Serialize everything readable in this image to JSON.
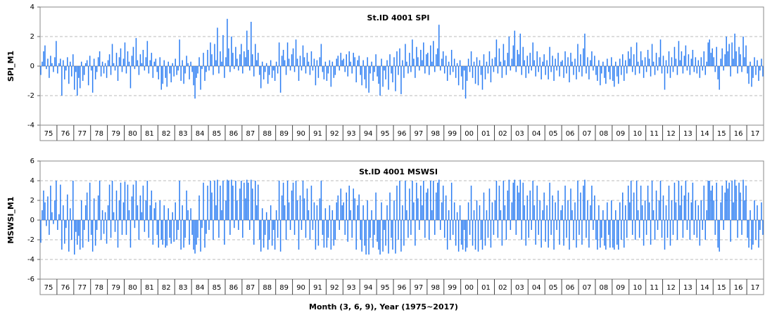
{
  "chart_data": [
    {
      "type": "bar",
      "title": "St.ID   4001   SPI",
      "ylabel": "SPI_M1",
      "color": "#2a7cf2",
      "grid": true,
      "ylim": [
        -4,
        4
      ],
      "yticks": [
        -4,
        -2,
        0,
        2,
        4
      ],
      "categories": [
        "75",
        "76",
        "77",
        "78",
        "79",
        "80",
        "81",
        "82",
        "83",
        "84",
        "85",
        "86",
        "87",
        "88",
        "89",
        "90",
        "91",
        "92",
        "93",
        "94",
        "95",
        "96",
        "97",
        "98",
        "99",
        "00",
        "01",
        "02",
        "03",
        "04",
        "05",
        "06",
        "07",
        "08",
        "09",
        "10",
        "11",
        "12",
        "13",
        "14",
        "15",
        "16",
        "17"
      ],
      "values": [
        [
          -0.6,
          0.3,
          1.0,
          1.4,
          -0.2,
          0.5,
          -0.8,
          0.7,
          0.2,
          -0.4,
          0.6,
          1.7
        ],
        [
          -0.5,
          0.2,
          0.5,
          -2.0,
          0.4,
          -0.9,
          -0.3,
          0.6,
          -1.2,
          0.3,
          -0.7,
          0.8
        ],
        [
          -1.6,
          -0.4,
          -2.0,
          -0.8,
          -1.5,
          0.3,
          -1.0,
          -0.6,
          0.2,
          0.4,
          -1.3,
          0.7
        ],
        [
          -0.3,
          -1.8,
          0.5,
          -0.9,
          -0.4,
          0.6,
          1.0,
          -0.7,
          0.3,
          -0.5,
          0.2,
          -0.8
        ],
        [
          0.4,
          0.8,
          -0.6,
          1.5,
          0.2,
          -0.3,
          0.9,
          -1.0,
          0.6,
          1.2,
          -0.4,
          0.5
        ],
        [
          1.6,
          -0.5,
          1.0,
          0.3,
          -1.5,
          0.7,
          1.3,
          -0.2,
          1.9,
          0.4,
          -0.6,
          0.8
        ],
        [
          0.2,
          1.1,
          -0.3,
          0.6,
          1.7,
          -0.5,
          0.4,
          0.9,
          -0.8,
          0.3,
          0.5,
          -0.4
        ],
        [
          -0.9,
          0.6,
          -1.6,
          -1.2,
          0.4,
          -0.8,
          -1.4,
          0.3,
          -0.5,
          -1.1,
          0.2,
          -0.7
        ],
        [
          0.5,
          -0.6,
          -0.3,
          1.8,
          -1.0,
          0.4,
          -1.2,
          -0.5,
          0.7,
          0.2,
          -0.9,
          0.3
        ],
        [
          -0.4,
          -1.3,
          -2.2,
          -0.8,
          -0.5,
          0.6,
          -1.6,
          -0.2,
          0.9,
          -1.0,
          -0.4,
          1.1
        ],
        [
          -0.3,
          1.6,
          0.8,
          -0.6,
          1.5,
          0.4,
          2.6,
          -0.5,
          1.0,
          0.3,
          2.1,
          -0.8
        ],
        [
          0.6,
          3.2,
          1.2,
          -0.4,
          2.0,
          0.9,
          -0.2,
          1.3,
          0.5,
          -0.3,
          0.8,
          1.5
        ],
        [
          -0.5,
          1.0,
          0.6,
          2.4,
          1.1,
          -0.3,
          3.0,
          0.8,
          -0.7,
          1.5,
          0.4,
          0.9
        ],
        [
          -0.6,
          -1.5,
          0.3,
          -0.9,
          -0.4,
          0.2,
          -1.2,
          -0.6,
          0.4,
          -0.8,
          -0.3,
          -1.0
        ],
        [
          0.3,
          -0.5,
          1.6,
          -1.8,
          0.7,
          1.1,
          0.4,
          -0.6,
          1.6,
          0.5,
          -0.3,
          0.8
        ],
        [
          1.2,
          -0.4,
          1.8,
          0.5,
          -1.0,
          0.7,
          -0.3,
          1.4,
          0.6,
          -0.5,
          0.9,
          0.3
        ],
        [
          -0.6,
          1.0,
          -0.3,
          0.5,
          -1.3,
          0.4,
          -0.8,
          0.6,
          1.5,
          -0.4,
          -0.9,
          0.3
        ],
        [
          -1.0,
          -0.5,
          0.4,
          -1.4,
          0.3,
          -0.8,
          -0.6,
          0.5,
          0.7,
          -0.3,
          0.9,
          0.4
        ],
        [
          0.5,
          -0.4,
          0.8,
          -0.7,
          1.0,
          0.3,
          -0.5,
          0.9,
          0.6,
          -1.1,
          0.4,
          0.7
        ],
        [
          -0.6,
          -1.3,
          0.4,
          -0.9,
          -1.5,
          0.6,
          -1.8,
          -0.5,
          0.3,
          -1.0,
          -0.4,
          0.8
        ],
        [
          -0.7,
          -1.2,
          -2.0,
          0.5,
          -1.4,
          -0.3,
          -0.9,
          0.4,
          -1.6,
          0.8,
          -0.5,
          -1.1
        ],
        [
          0.6,
          -1.7,
          1.0,
          -0.6,
          1.2,
          -1.9,
          0.4,
          -0.8,
          1.5,
          0.3,
          -0.5,
          0.9
        ],
        [
          -0.4,
          1.8,
          0.5,
          -0.8,
          1.3,
          0.6,
          -0.3,
          1.1,
          0.4,
          1.6,
          -0.5,
          0.8
        ],
        [
          0.9,
          -0.6,
          1.4,
          0.3,
          1.7,
          -0.4,
          0.8,
          1.2,
          2.8,
          -0.3,
          0.5,
          1.0
        ],
        [
          -0.5,
          0.7,
          -1.0,
          0.3,
          -0.6,
          1.1,
          -0.4,
          0.5,
          -0.8,
          0.2,
          -1.3,
          0.4
        ],
        [
          -0.7,
          -1.6,
          -0.3,
          -2.2,
          -1.0,
          0.5,
          -0.4,
          1.0,
          -0.8,
          0.3,
          -1.2,
          0.6
        ],
        [
          -1.3,
          0.4,
          -0.6,
          -1.6,
          0.8,
          -0.9,
          0.3,
          -0.5,
          1.0,
          -1.1,
          0.5,
          -0.4
        ],
        [
          0.6,
          1.8,
          -0.5,
          1.2,
          0.3,
          -0.8,
          1.5,
          0.4,
          -0.6,
          0.9,
          2.0,
          -0.3
        ],
        [
          0.5,
          1.4,
          2.4,
          -0.4,
          1.1,
          0.8,
          2.2,
          -0.6,
          1.3,
          0.4,
          -0.8,
          0.7
        ],
        [
          -0.5,
          0.9,
          -0.3,
          1.6,
          0.4,
          -0.7,
          1.0,
          -0.4,
          0.6,
          -0.9,
          0.3,
          0.8
        ],
        [
          -0.6,
          0.4,
          -0.9,
          1.3,
          -0.4,
          0.7,
          -1.0,
          0.5,
          -0.3,
          0.9,
          -0.7,
          0.3
        ],
        [
          0.4,
          -0.8,
          1.0,
          -0.5,
          0.6,
          -1.1,
          0.9,
          0.3,
          -0.6,
          0.5,
          -0.9,
          1.5
        ],
        [
          -0.4,
          0.8,
          -0.7,
          1.2,
          2.2,
          -0.5,
          0.6,
          -0.9,
          0.4,
          1.0,
          -0.3,
          0.7
        ],
        [
          -0.6,
          -1.0,
          0.4,
          -1.3,
          -0.5,
          0.3,
          -0.8,
          -1.2,
          0.5,
          -0.4,
          -0.9,
          0.6
        ],
        [
          -1.0,
          -1.4,
          0.3,
          -0.7,
          -1.2,
          0.5,
          -0.6,
          0.8,
          -1.0,
          0.4,
          -0.5,
          1.0
        ],
        [
          0.5,
          1.3,
          -0.4,
          0.8,
          -0.6,
          1.6,
          0.3,
          -0.5,
          1.0,
          0.4,
          -0.8,
          0.6
        ],
        [
          -0.4,
          1.1,
          0.5,
          -0.7,
          1.5,
          0.3,
          -0.6,
          0.9,
          -0.3,
          0.6,
          1.8,
          -0.5
        ],
        [
          0.7,
          -1.6,
          0.4,
          -0.5,
          1.0,
          -0.8,
          0.6,
          -0.4,
          1.3,
          0.5,
          -0.6,
          1.7
        ],
        [
          0.4,
          1.0,
          -0.5,
          0.7,
          1.4,
          -0.3,
          0.8,
          -0.6,
          0.5,
          1.1,
          -0.4,
          0.6
        ],
        [
          -0.5,
          0.4,
          -0.8,
          0.6,
          -0.3,
          1.0,
          -0.6,
          0.3,
          1.6,
          1.8,
          0.9,
          1.2
        ],
        [
          0.6,
          -0.4,
          1.3,
          -0.9,
          -1.6,
          0.5,
          1.2,
          -0.3,
          0.8,
          2.0,
          1.0,
          1.5
        ],
        [
          -0.7,
          1.6,
          0.5,
          2.2,
          1.0,
          -0.5,
          1.3,
          0.8,
          -0.4,
          2.0,
          0.6,
          1.4
        ],
        [
          -0.5,
          -1.2,
          0.3,
          -1.4,
          -0.8,
          0.6,
          -0.6,
          0.4,
          -1.0,
          -0.3,
          0.5,
          -0.7
        ]
      ]
    },
    {
      "type": "bar",
      "title": "St.ID   4001   MSWSI",
      "ylabel": "MSWSI_M1",
      "xlabel": "Month (3, 6, 9),      Year (1975~2017)",
      "color": "#2a7cf2",
      "grid": true,
      "ylim": [
        -6,
        6
      ],
      "yticks": [
        -6,
        -4,
        -2,
        0,
        2,
        4,
        6
      ],
      "categories": [
        "75",
        "76",
        "77",
        "78",
        "79",
        "80",
        "81",
        "82",
        "83",
        "84",
        "85",
        "86",
        "87",
        "88",
        "89",
        "90",
        "91",
        "92",
        "93",
        "94",
        "95",
        "96",
        "97",
        "98",
        "99",
        "00",
        "01",
        "02",
        "03",
        "04",
        "05",
        "06",
        "07",
        "08",
        "09",
        "10",
        "11",
        "12",
        "13",
        "14",
        "15",
        "16",
        "17"
      ],
      "values": [
        [
          -2.3,
          1.0,
          3.0,
          1.8,
          -0.6,
          2.4,
          -1.5,
          3.5,
          0.8,
          -0.4,
          2.0,
          4.0
        ],
        [
          -1.0,
          0.6,
          3.6,
          -3.0,
          1.5,
          -2.4,
          -0.8,
          2.6,
          -3.2,
          1.2,
          -2.0,
          4.0
        ],
        [
          -3.5,
          -1.2,
          -2.5,
          -1.6,
          -3.0,
          2.0,
          -2.8,
          -1.0,
          1.5,
          2.8,
          -2.2,
          3.8
        ],
        [
          -1.5,
          -3.2,
          2.2,
          -2.6,
          -1.0,
          2.5,
          4.0,
          -2.0,
          1.0,
          -1.4,
          0.8,
          -2.4
        ],
        [
          1.5,
          3.6,
          -1.8,
          4.0,
          0.8,
          -1.2,
          3.0,
          -2.8,
          2.0,
          3.8,
          -1.5,
          1.8
        ],
        [
          3.9,
          -1.5,
          3.6,
          1.0,
          -2.8,
          2.4,
          3.6,
          -0.8,
          4.0,
          1.5,
          -2.0,
          2.5
        ],
        [
          0.8,
          3.5,
          -1.2,
          2.0,
          4.0,
          -1.8,
          1.5,
          3.0,
          -2.5,
          1.2,
          1.8,
          -1.5
        ],
        [
          -2.8,
          2.0,
          -2.0,
          -2.5,
          1.5,
          -2.8,
          -2.6,
          1.2,
          -1.8,
          -2.4,
          0.8,
          -2.2
        ],
        [
          1.8,
          -2.0,
          -1.0,
          4.0,
          -3.0,
          1.5,
          -2.8,
          -1.8,
          3.0,
          1.0,
          -2.5,
          1.2
        ],
        [
          -1.5,
          -3.0,
          -3.4,
          -2.5,
          -1.8,
          2.5,
          -3.2,
          -0.8,
          3.8,
          -2.8,
          -1.4,
          3.5
        ],
        [
          -1.0,
          4.0,
          2.8,
          -2.0,
          4.0,
          1.5,
          4.1,
          -1.8,
          3.5,
          1.0,
          4.0,
          -2.5
        ],
        [
          2.0,
          4.1,
          4.0,
          -1.5,
          4.1,
          3.5,
          -0.8,
          4.0,
          2.0,
          -1.0,
          3.2,
          4.0
        ],
        [
          -1.8,
          3.8,
          2.2,
          4.1,
          3.8,
          -1.0,
          4.1,
          3.2,
          -2.5,
          4.0,
          1.5,
          3.6
        ],
        [
          -2.0,
          -3.2,
          1.2,
          -2.8,
          -1.5,
          0.8,
          -3.0,
          -2.0,
          1.5,
          -2.6,
          -1.0,
          -3.0
        ],
        [
          1.0,
          -1.8,
          4.0,
          -3.2,
          2.5,
          3.8,
          1.5,
          -2.0,
          4.0,
          1.8,
          -1.0,
          3.0
        ],
        [
          3.8,
          -1.5,
          4.0,
          2.0,
          -3.0,
          2.5,
          -1.0,
          4.0,
          2.2,
          -1.8,
          3.2,
          1.0
        ],
        [
          -2.0,
          3.5,
          -1.0,
          1.8,
          -3.0,
          1.5,
          -2.6,
          2.2,
          4.0,
          -1.5,
          -2.8,
          1.2
        ],
        [
          -2.8,
          -1.8,
          1.5,
          -3.0,
          1.0,
          -2.6,
          -2.0,
          1.8,
          2.5,
          -1.0,
          3.2,
          1.5
        ],
        [
          1.8,
          -1.5,
          2.8,
          -2.2,
          3.5,
          1.0,
          -1.8,
          3.2,
          2.2,
          -3.0,
          1.5,
          2.6
        ],
        [
          -2.0,
          -3.2,
          1.5,
          -2.6,
          -3.5,
          2.0,
          -3.5,
          -1.8,
          1.0,
          -2.8,
          -1.5,
          2.8
        ],
        [
          -2.2,
          -3.0,
          -3.5,
          1.8,
          -3.2,
          -1.0,
          -2.6,
          1.5,
          -3.4,
          2.8,
          -1.8,
          -3.0
        ],
        [
          2.0,
          -3.4,
          3.5,
          -2.0,
          4.0,
          -3.2,
          1.5,
          -2.6,
          4.0,
          1.0,
          -1.8,
          3.2
        ],
        [
          -1.5,
          4.0,
          1.8,
          -2.6,
          3.8,
          2.2,
          -1.0,
          3.5,
          1.5,
          4.0,
          -1.8,
          2.8
        ],
        [
          3.2,
          -2.0,
          4.0,
          1.0,
          4.0,
          -1.5,
          2.8,
          3.8,
          4.1,
          -1.0,
          1.8,
          3.5
        ],
        [
          -1.8,
          2.5,
          -3.0,
          1.0,
          -2.0,
          3.8,
          -1.5,
          1.8,
          -2.6,
          0.8,
          -3.2,
          1.5
        ],
        [
          -2.5,
          -3.0,
          -1.0,
          -3.2,
          -2.8,
          1.8,
          -1.5,
          3.5,
          -2.6,
          1.0,
          -3.0,
          2.0
        ],
        [
          -3.2,
          1.5,
          -2.0,
          -3.0,
          2.8,
          -2.6,
          1.0,
          -1.8,
          3.2,
          -2.8,
          1.8,
          -1.5
        ],
        [
          2.0,
          4.0,
          -1.8,
          3.5,
          1.0,
          -2.6,
          4.0,
          1.5,
          -2.0,
          3.0,
          4.1,
          -1.0
        ],
        [
          1.8,
          3.8,
          4.1,
          -1.5,
          3.5,
          2.8,
          4.1,
          -2.0,
          3.8,
          1.5,
          -2.6,
          2.5
        ],
        [
          -1.8,
          3.0,
          -1.0,
          4.0,
          1.5,
          -2.5,
          3.5,
          -1.5,
          2.0,
          -2.8,
          1.0,
          2.8
        ],
        [
          -2.2,
          1.5,
          -2.8,
          3.8,
          -1.5,
          2.5,
          -3.0,
          1.8,
          -1.0,
          3.0,
          -2.5,
          1.0
        ],
        [
          1.5,
          -2.6,
          3.5,
          -1.8,
          2.0,
          -3.0,
          3.2,
          1.0,
          -2.0,
          1.8,
          -2.8,
          4.0
        ],
        [
          -1.5,
          2.8,
          -2.5,
          3.5,
          4.1,
          -1.8,
          2.0,
          -2.8,
          1.5,
          3.5,
          -1.0,
          2.5
        ],
        [
          -2.0,
          -3.0,
          1.5,
          -2.8,
          -1.8,
          1.0,
          -2.6,
          -3.0,
          1.8,
          -1.5,
          -2.8,
          2.0
        ],
        [
          -2.8,
          -3.0,
          1.0,
          -2.5,
          -3.0,
          1.8,
          -2.0,
          2.8,
          -2.8,
          1.5,
          -1.8,
          3.5
        ],
        [
          1.8,
          4.0,
          -1.5,
          2.8,
          -2.0,
          4.0,
          1.0,
          -1.8,
          3.5,
          1.5,
          -2.6,
          2.0
        ],
        [
          -1.5,
          3.5,
          1.8,
          -2.5,
          4.0,
          1.0,
          -2.0,
          3.0,
          -1.0,
          2.0,
          4.0,
          -1.8
        ],
        [
          2.5,
          -3.0,
          1.5,
          -1.8,
          3.5,
          -2.6,
          2.0,
          -1.5,
          3.8,
          1.8,
          -2.0,
          4.0
        ],
        [
          1.5,
          3.5,
          -1.8,
          2.5,
          4.0,
          -1.0,
          2.8,
          -2.0,
          1.8,
          3.8,
          -1.5,
          2.0
        ],
        [
          -1.8,
          1.5,
          -2.6,
          2.0,
          -1.0,
          3.5,
          -2.0,
          1.0,
          4.0,
          4.0,
          3.0,
          3.5
        ],
        [
          2.0,
          -1.5,
          3.8,
          -2.8,
          -3.2,
          1.8,
          3.5,
          -1.0,
          2.8,
          4.0,
          3.2,
          3.8
        ],
        [
          -2.2,
          4.0,
          1.8,
          4.1,
          3.5,
          -1.8,
          3.8,
          2.8,
          -1.5,
          4.1,
          2.0,
          3.5
        ],
        [
          -1.8,
          -2.8,
          1.0,
          -3.0,
          -2.5,
          2.0,
          -2.0,
          1.5,
          -2.8,
          -1.0,
          1.8,
          -1.5
        ]
      ]
    }
  ]
}
